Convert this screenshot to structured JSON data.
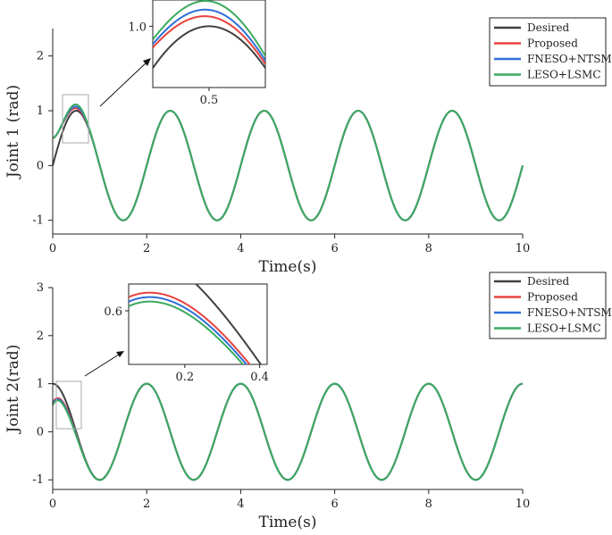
{
  "legend": {
    "items": [
      {
        "label": "Desired",
        "color": "#404040"
      },
      {
        "label": "Proposed",
        "color": "#e8423f"
      },
      {
        "label": "FNESO+NTSMC",
        "color": "#2e6fd8"
      },
      {
        "label": "LESO+LSMC",
        "color": "#3aaa5e"
      }
    ]
  },
  "chart_data": [
    {
      "type": "line",
      "xlabel": "Time(s)",
      "ylabel": "Joint 1 (rad)",
      "xlim": [
        0,
        10
      ],
      "ylim": [
        -1.25,
        2.5
      ],
      "xticks": [
        "0",
        "2",
        "4",
        "6",
        "8",
        "10"
      ],
      "yticks": [
        "-1",
        "0",
        "1",
        "2"
      ],
      "x": [
        0,
        0.1,
        0.2,
        0.3,
        0.4,
        0.5,
        0.6,
        0.7,
        0.8,
        0.9,
        1.0,
        1.5,
        2.0,
        2.5,
        3.0,
        3.5,
        4.0,
        4.5,
        5.0,
        5.5,
        6.0,
        6.5,
        7.0,
        7.5,
        8.0,
        8.5,
        9.0,
        9.5,
        10.0
      ],
      "series": [
        {
          "name": "Desired",
          "values": [
            0.0,
            0.31,
            0.59,
            0.81,
            0.95,
            1.0,
            0.95,
            0.81,
            0.59,
            0.31,
            0.0,
            -1.0,
            0.0,
            1.0,
            0.0,
            -1.0,
            0.0,
            1.0,
            0.0,
            -1.0,
            0.0,
            1.0,
            0.0,
            -1.0,
            0.0,
            1.0,
            0.0,
            -1.0,
            0.0
          ]
        },
        {
          "name": "Proposed",
          "values": [
            0.5,
            0.55,
            0.69,
            0.86,
            0.97,
            1.01,
            0.96,
            0.81,
            0.59,
            0.31,
            0.0,
            -1.0,
            0.0,
            1.0,
            0.0,
            -1.0,
            0.0,
            1.0,
            0.0,
            -1.0,
            0.0,
            1.0,
            0.0,
            -1.0,
            0.0,
            1.0,
            0.0,
            -1.0,
            0.0
          ]
        },
        {
          "name": "FNESO+NTSMC",
          "values": [
            0.5,
            0.57,
            0.72,
            0.89,
            1.0,
            1.03,
            0.97,
            0.82,
            0.59,
            0.31,
            0.0,
            -1.0,
            0.0,
            1.0,
            0.0,
            -1.0,
            0.0,
            1.0,
            0.0,
            -1.0,
            0.0,
            1.0,
            0.0,
            -1.0,
            0.0,
            1.0,
            0.0,
            -1.0,
            0.0
          ]
        },
        {
          "name": "LESO+LSMC",
          "values": [
            0.5,
            0.6,
            0.76,
            0.93,
            1.04,
            1.07,
            1.0,
            0.83,
            0.6,
            0.31,
            0.0,
            -1.0,
            0.0,
            1.0,
            0.0,
            -1.0,
            0.0,
            1.0,
            0.0,
            -1.0,
            0.0,
            1.0,
            0.0,
            -1.0,
            0.0,
            1.0,
            0.0,
            -1.0,
            0.0
          ]
        }
      ],
      "inset": {
        "xlim": [
          0.3,
          0.7
        ],
        "ylim": [
          0.72,
          1.12
        ],
        "xticks": [
          "0.5"
        ],
        "yticks": [
          "1.0"
        ]
      }
    },
    {
      "type": "line",
      "xlabel": "Time(s)",
      "ylabel": "Joint 2(rad)",
      "xlim": [
        0,
        10
      ],
      "ylim": [
        -1.2,
        3
      ],
      "xticks": [
        "0",
        "2",
        "4",
        "6",
        "8",
        "10"
      ],
      "yticks": [
        "-1",
        "0",
        "1",
        "2",
        "3"
      ],
      "x": [
        0,
        0.1,
        0.2,
        0.3,
        0.4,
        0.5,
        0.6,
        0.7,
        0.8,
        0.9,
        1.0,
        1.5,
        2.0,
        2.5,
        3.0,
        3.5,
        4.0,
        4.5,
        5.0,
        5.5,
        6.0,
        6.5,
        7.0,
        7.5,
        8.0,
        8.5,
        9.0,
        9.5,
        10.0
      ],
      "series": [
        {
          "name": "Desired",
          "values": [
            1.0,
            0.95,
            0.81,
            0.59,
            0.31,
            0.0,
            -0.31,
            -0.59,
            -0.81,
            -0.95,
            -1.0,
            0.0,
            1.0,
            0.0,
            -1.0,
            0.0,
            1.0,
            0.0,
            -1.0,
            0.0,
            1.0,
            0.0,
            -1.0,
            0.0,
            1.0,
            0.0,
            -1.0,
            0.0,
            1.0
          ]
        },
        {
          "name": "Proposed",
          "values": [
            0.62,
            0.69,
            0.66,
            0.53,
            0.29,
            0.0,
            -0.31,
            -0.59,
            -0.81,
            -0.95,
            -1.0,
            0.0,
            1.0,
            0.0,
            -1.0,
            0.0,
            1.0,
            0.0,
            -1.0,
            0.0,
            1.0,
            0.0,
            -1.0,
            0.0,
            1.0,
            0.0,
            -1.0,
            0.0,
            1.0
          ]
        },
        {
          "name": "FNESO+NTSMC",
          "values": [
            0.6,
            0.66,
            0.63,
            0.51,
            0.28,
            0.0,
            -0.31,
            -0.59,
            -0.81,
            -0.95,
            -1.0,
            0.0,
            1.0,
            0.0,
            -1.0,
            0.0,
            1.0,
            0.0,
            -1.0,
            0.0,
            1.0,
            0.0,
            -1.0,
            0.0,
            1.0,
            0.0,
            -1.0,
            0.0,
            1.0
          ]
        },
        {
          "name": "LESO+LSMC",
          "values": [
            0.58,
            0.64,
            0.61,
            0.49,
            0.27,
            -0.01,
            -0.31,
            -0.59,
            -0.81,
            -0.95,
            -1.0,
            0.0,
            1.0,
            0.0,
            -1.0,
            0.0,
            1.0,
            0.0,
            -1.0,
            0.0,
            1.0,
            0.0,
            -1.0,
            0.0,
            1.0,
            0.0,
            -1.0,
            0.0,
            1.0
          ]
        }
      ],
      "inset": {
        "xlim": [
          0.05,
          0.42
        ],
        "ylim": [
          0.3,
          0.75
        ],
        "xticks": [
          "0.2",
          "0.4"
        ],
        "yticks": [
          "0.6"
        ]
      }
    }
  ]
}
